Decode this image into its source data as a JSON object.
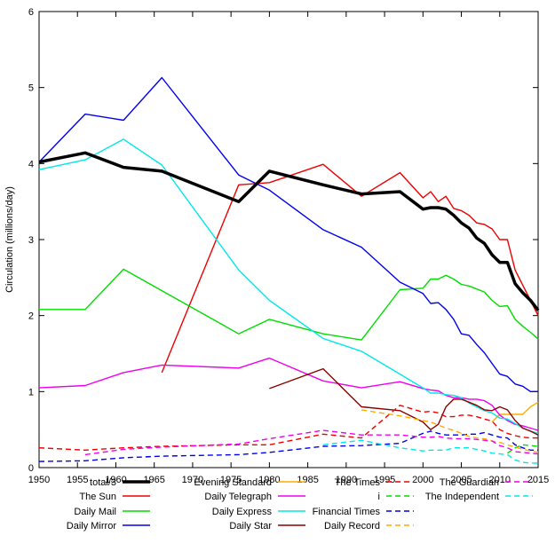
{
  "chart_data": {
    "type": "line",
    "title": "",
    "xlabel": "",
    "ylabel": "Circulation (millions/day)",
    "xlim": [
      1950,
      2015
    ],
    "ylim": [
      0,
      6
    ],
    "x_ticks": [
      1950,
      1955,
      1960,
      1965,
      1970,
      1975,
      1980,
      1985,
      1990,
      1995,
      2000,
      2005,
      2010,
      2015
    ],
    "y_ticks": [
      0,
      1,
      2,
      3,
      4,
      5,
      6
    ],
    "grid": false,
    "legend_position": "bottom",
    "series": [
      {
        "name": "total/3",
        "color": "#000000",
        "dash": "solid",
        "bold": true,
        "points": [
          [
            1950,
            4.02
          ],
          [
            1956,
            4.14
          ],
          [
            1961,
            3.95
          ],
          [
            1966,
            3.9
          ],
          [
            1976,
            3.5
          ],
          [
            1980,
            3.9
          ],
          [
            1987,
            3.72
          ],
          [
            1992,
            3.6
          ],
          [
            1997,
            3.63
          ],
          [
            2000,
            3.4
          ],
          [
            2001,
            3.42
          ],
          [
            2002,
            3.42
          ],
          [
            2003,
            3.4
          ],
          [
            2004,
            3.32
          ],
          [
            2005,
            3.22
          ],
          [
            2006,
            3.15
          ],
          [
            2007,
            3.02
          ],
          [
            2008,
            2.95
          ],
          [
            2009,
            2.8
          ],
          [
            2010,
            2.7
          ],
          [
            2011,
            2.7
          ],
          [
            2012,
            2.42
          ],
          [
            2013,
            2.3
          ],
          [
            2014,
            2.2
          ],
          [
            2015,
            2.07
          ]
        ]
      },
      {
        "name": "The Sun",
        "color": "#ee0000",
        "dash": "solid",
        "bold": false,
        "points": [
          [
            1966,
            1.25
          ],
          [
            1976,
            3.72
          ],
          [
            1980,
            3.75
          ],
          [
            1987,
            3.99
          ],
          [
            1992,
            3.57
          ],
          [
            1997,
            3.88
          ],
          [
            2000,
            3.55
          ],
          [
            2001,
            3.63
          ],
          [
            2002,
            3.5
          ],
          [
            2003,
            3.57
          ],
          [
            2004,
            3.41
          ],
          [
            2005,
            3.38
          ],
          [
            2006,
            3.32
          ],
          [
            2007,
            3.22
          ],
          [
            2008,
            3.2
          ],
          [
            2009,
            3.14
          ],
          [
            2010,
            3.0
          ],
          [
            2011,
            3.0
          ],
          [
            2012,
            2.6
          ],
          [
            2013,
            2.4
          ],
          [
            2014,
            2.2
          ],
          [
            2015,
            2.0
          ]
        ]
      },
      {
        "name": "Daily Mail",
        "color": "#00dd00",
        "dash": "solid",
        "bold": false,
        "points": [
          [
            1950,
            2.08
          ],
          [
            1956,
            2.08
          ],
          [
            1961,
            2.61
          ],
          [
            1976,
            1.76
          ],
          [
            1980,
            1.95
          ],
          [
            1987,
            1.76
          ],
          [
            1992,
            1.68
          ],
          [
            1997,
            2.34
          ],
          [
            2000,
            2.36
          ],
          [
            2001,
            2.48
          ],
          [
            2002,
            2.48
          ],
          [
            2003,
            2.53
          ],
          [
            2004,
            2.48
          ],
          [
            2005,
            2.41
          ],
          [
            2006,
            2.39
          ],
          [
            2007,
            2.35
          ],
          [
            2008,
            2.31
          ],
          [
            2009,
            2.2
          ],
          [
            2010,
            2.12
          ],
          [
            2011,
            2.13
          ],
          [
            2012,
            1.95
          ],
          [
            2013,
            1.86
          ],
          [
            2014,
            1.78
          ],
          [
            2015,
            1.69
          ]
        ]
      },
      {
        "name": "Daily Mirror",
        "color": "#0000ee",
        "dash": "solid",
        "bold": false,
        "points": [
          [
            1950,
            4.02
          ],
          [
            1956,
            4.65
          ],
          [
            1961,
            4.57
          ],
          [
            1966,
            5.13
          ],
          [
            1976,
            3.85
          ],
          [
            1980,
            3.65
          ],
          [
            1987,
            3.13
          ],
          [
            1992,
            2.9
          ],
          [
            1997,
            2.44
          ],
          [
            2000,
            2.29
          ],
          [
            2001,
            2.16
          ],
          [
            2002,
            2.17
          ],
          [
            2003,
            2.08
          ],
          [
            2004,
            1.95
          ],
          [
            2005,
            1.76
          ],
          [
            2006,
            1.74
          ],
          [
            2007,
            1.62
          ],
          [
            2008,
            1.51
          ],
          [
            2009,
            1.37
          ],
          [
            2010,
            1.23
          ],
          [
            2011,
            1.2
          ],
          [
            2012,
            1.1
          ],
          [
            2013,
            1.07
          ],
          [
            2014,
            1.0
          ],
          [
            2015,
            1.0
          ]
        ]
      },
      {
        "name": "Evening Standard",
        "color": "#ffaa00",
        "dash": "solid",
        "bold": false,
        "points": [
          [
            2009,
            0.6
          ],
          [
            2010,
            0.7
          ],
          [
            2011,
            0.7
          ],
          [
            2012,
            0.7
          ],
          [
            2013,
            0.7
          ],
          [
            2014,
            0.8
          ],
          [
            2015,
            0.86
          ]
        ]
      },
      {
        "name": "Daily Telegraph",
        "color": "#ee00ee",
        "dash": "solid",
        "bold": false,
        "points": [
          [
            1950,
            1.05
          ],
          [
            1956,
            1.08
          ],
          [
            1961,
            1.25
          ],
          [
            1966,
            1.35
          ],
          [
            1976,
            1.31
          ],
          [
            1980,
            1.44
          ],
          [
            1987,
            1.14
          ],
          [
            1992,
            1.05
          ],
          [
            1997,
            1.13
          ],
          [
            2000,
            1.04
          ],
          [
            2001,
            1.02
          ],
          [
            2002,
            1.01
          ],
          [
            2003,
            0.95
          ],
          [
            2004,
            0.92
          ],
          [
            2005,
            0.92
          ],
          [
            2006,
            0.9
          ],
          [
            2007,
            0.9
          ],
          [
            2008,
            0.88
          ],
          [
            2009,
            0.82
          ],
          [
            2010,
            0.69
          ],
          [
            2011,
            0.62
          ],
          [
            2012,
            0.57
          ],
          [
            2013,
            0.55
          ],
          [
            2014,
            0.52
          ],
          [
            2015,
            0.49
          ]
        ]
      },
      {
        "name": "Daily Express",
        "color": "#00e8e8",
        "dash": "solid",
        "bold": false,
        "points": [
          [
            1950,
            3.92
          ],
          [
            1956,
            4.05
          ],
          [
            1961,
            4.32
          ],
          [
            1966,
            3.98
          ],
          [
            1976,
            2.6
          ],
          [
            1980,
            2.2
          ],
          [
            1987,
            1.7
          ],
          [
            1992,
            1.53
          ],
          [
            1997,
            1.23
          ],
          [
            2000,
            1.05
          ],
          [
            2001,
            0.98
          ],
          [
            2002,
            0.98
          ],
          [
            2003,
            0.96
          ],
          [
            2004,
            0.95
          ],
          [
            2005,
            0.92
          ],
          [
            2006,
            0.85
          ],
          [
            2007,
            0.8
          ],
          [
            2008,
            0.75
          ],
          [
            2009,
            0.72
          ],
          [
            2010,
            0.65
          ],
          [
            2011,
            0.64
          ],
          [
            2012,
            0.58
          ],
          [
            2013,
            0.52
          ],
          [
            2014,
            0.48
          ],
          [
            2015,
            0.45
          ]
        ]
      },
      {
        "name": "Daily Star",
        "color": "#880000",
        "dash": "solid",
        "bold": false,
        "points": [
          [
            1980,
            1.04
          ],
          [
            1987,
            1.3
          ],
          [
            1992,
            0.8
          ],
          [
            1997,
            0.75
          ],
          [
            2000,
            0.6
          ],
          [
            2001,
            0.5
          ],
          [
            2002,
            0.57
          ],
          [
            2003,
            0.8
          ],
          [
            2004,
            0.9
          ],
          [
            2005,
            0.9
          ],
          [
            2006,
            0.86
          ],
          [
            2007,
            0.82
          ],
          [
            2008,
            0.76
          ],
          [
            2009,
            0.75
          ],
          [
            2010,
            0.8
          ],
          [
            2011,
            0.76
          ],
          [
            2012,
            0.62
          ],
          [
            2013,
            0.52
          ],
          [
            2014,
            0.48
          ],
          [
            2015,
            0.43
          ]
        ]
      },
      {
        "name": "The Times",
        "color": "#ee0000",
        "dash": "dashed",
        "bold": false,
        "points": [
          [
            1950,
            0.26
          ],
          [
            1956,
            0.23
          ],
          [
            1961,
            0.26
          ],
          [
            1966,
            0.28
          ],
          [
            1976,
            0.3
          ],
          [
            1980,
            0.3
          ],
          [
            1987,
            0.44
          ],
          [
            1992,
            0.39
          ],
          [
            1997,
            0.82
          ],
          [
            2000,
            0.73
          ],
          [
            2001,
            0.74
          ],
          [
            2002,
            0.72
          ],
          [
            2003,
            0.67
          ],
          [
            2004,
            0.67
          ],
          [
            2005,
            0.69
          ],
          [
            2006,
            0.69
          ],
          [
            2007,
            0.67
          ],
          [
            2008,
            0.64
          ],
          [
            2009,
            0.61
          ],
          [
            2010,
            0.5
          ],
          [
            2011,
            0.45
          ],
          [
            2012,
            0.42
          ],
          [
            2013,
            0.4
          ],
          [
            2014,
            0.39
          ],
          [
            2015,
            0.39
          ]
        ]
      },
      {
        "name": "i",
        "color": "#00dd00",
        "dash": "dashed",
        "bold": false,
        "points": [
          [
            2011,
            0.19
          ],
          [
            2012,
            0.26
          ],
          [
            2013,
            0.3
          ],
          [
            2014,
            0.29
          ],
          [
            2015,
            0.28
          ]
        ]
      },
      {
        "name": "Financial Times",
        "color": "#0000ee",
        "dash": "dashed",
        "bold": false,
        "points": [
          [
            1950,
            0.08
          ],
          [
            1956,
            0.09
          ],
          [
            1961,
            0.13
          ],
          [
            1966,
            0.15
          ],
          [
            1976,
            0.17
          ],
          [
            1980,
            0.2
          ],
          [
            1987,
            0.28
          ],
          [
            1992,
            0.29
          ],
          [
            1997,
            0.32
          ],
          [
            2000,
            0.45
          ],
          [
            2001,
            0.48
          ],
          [
            2002,
            0.45
          ],
          [
            2003,
            0.43
          ],
          [
            2004,
            0.43
          ],
          [
            2005,
            0.43
          ],
          [
            2006,
            0.44
          ],
          [
            2007,
            0.44
          ],
          [
            2008,
            0.46
          ],
          [
            2009,
            0.43
          ],
          [
            2010,
            0.4
          ],
          [
            2011,
            0.39
          ],
          [
            2012,
            0.3
          ],
          [
            2013,
            0.26
          ],
          [
            2014,
            0.23
          ],
          [
            2015,
            0.23
          ]
        ]
      },
      {
        "name": "Daily Record",
        "color": "#ffaa00",
        "dash": "dashed",
        "bold": false,
        "points": [
          [
            1992,
            0.76
          ],
          [
            1997,
            0.68
          ],
          [
            2000,
            0.62
          ],
          [
            2001,
            0.6
          ],
          [
            2002,
            0.56
          ],
          [
            2003,
            0.52
          ],
          [
            2004,
            0.49
          ],
          [
            2005,
            0.45
          ],
          [
            2006,
            0.41
          ],
          [
            2007,
            0.39
          ],
          [
            2008,
            0.38
          ],
          [
            2009,
            0.35
          ],
          [
            2010,
            0.33
          ],
          [
            2011,
            0.3
          ],
          [
            2012,
            0.27
          ],
          [
            2013,
            0.24
          ],
          [
            2014,
            0.22
          ],
          [
            2015,
            0.2
          ]
        ]
      },
      {
        "name": "The Guardian",
        "color": "#ee00ee",
        "dash": "dashed",
        "bold": false,
        "points": [
          [
            1956,
            0.17
          ],
          [
            1961,
            0.24
          ],
          [
            1966,
            0.27
          ],
          [
            1976,
            0.31
          ],
          [
            1980,
            0.38
          ],
          [
            1987,
            0.49
          ],
          [
            1992,
            0.43
          ],
          [
            1997,
            0.43
          ],
          [
            2000,
            0.4
          ],
          [
            2001,
            0.4
          ],
          [
            2002,
            0.41
          ],
          [
            2003,
            0.39
          ],
          [
            2004,
            0.38
          ],
          [
            2005,
            0.38
          ],
          [
            2006,
            0.38
          ],
          [
            2007,
            0.37
          ],
          [
            2008,
            0.36
          ],
          [
            2009,
            0.35
          ],
          [
            2010,
            0.29
          ],
          [
            2011,
            0.26
          ],
          [
            2012,
            0.21
          ],
          [
            2013,
            0.2
          ],
          [
            2014,
            0.19
          ],
          [
            2015,
            0.18
          ]
        ]
      },
      {
        "name": "The Independent",
        "color": "#00e8e8",
        "dash": "dashed",
        "bold": false,
        "points": [
          [
            1987,
            0.3
          ],
          [
            1992,
            0.36
          ],
          [
            1997,
            0.26
          ],
          [
            2000,
            0.22
          ],
          [
            2001,
            0.23
          ],
          [
            2002,
            0.23
          ],
          [
            2003,
            0.23
          ],
          [
            2004,
            0.26
          ],
          [
            2005,
            0.26
          ],
          [
            2006,
            0.26
          ],
          [
            2007,
            0.24
          ],
          [
            2008,
            0.22
          ],
          [
            2009,
            0.19
          ],
          [
            2010,
            0.18
          ],
          [
            2011,
            0.17
          ],
          [
            2012,
            0.1
          ],
          [
            2013,
            0.07
          ],
          [
            2014,
            0.06
          ],
          [
            2015,
            0.06
          ]
        ]
      }
    ]
  }
}
